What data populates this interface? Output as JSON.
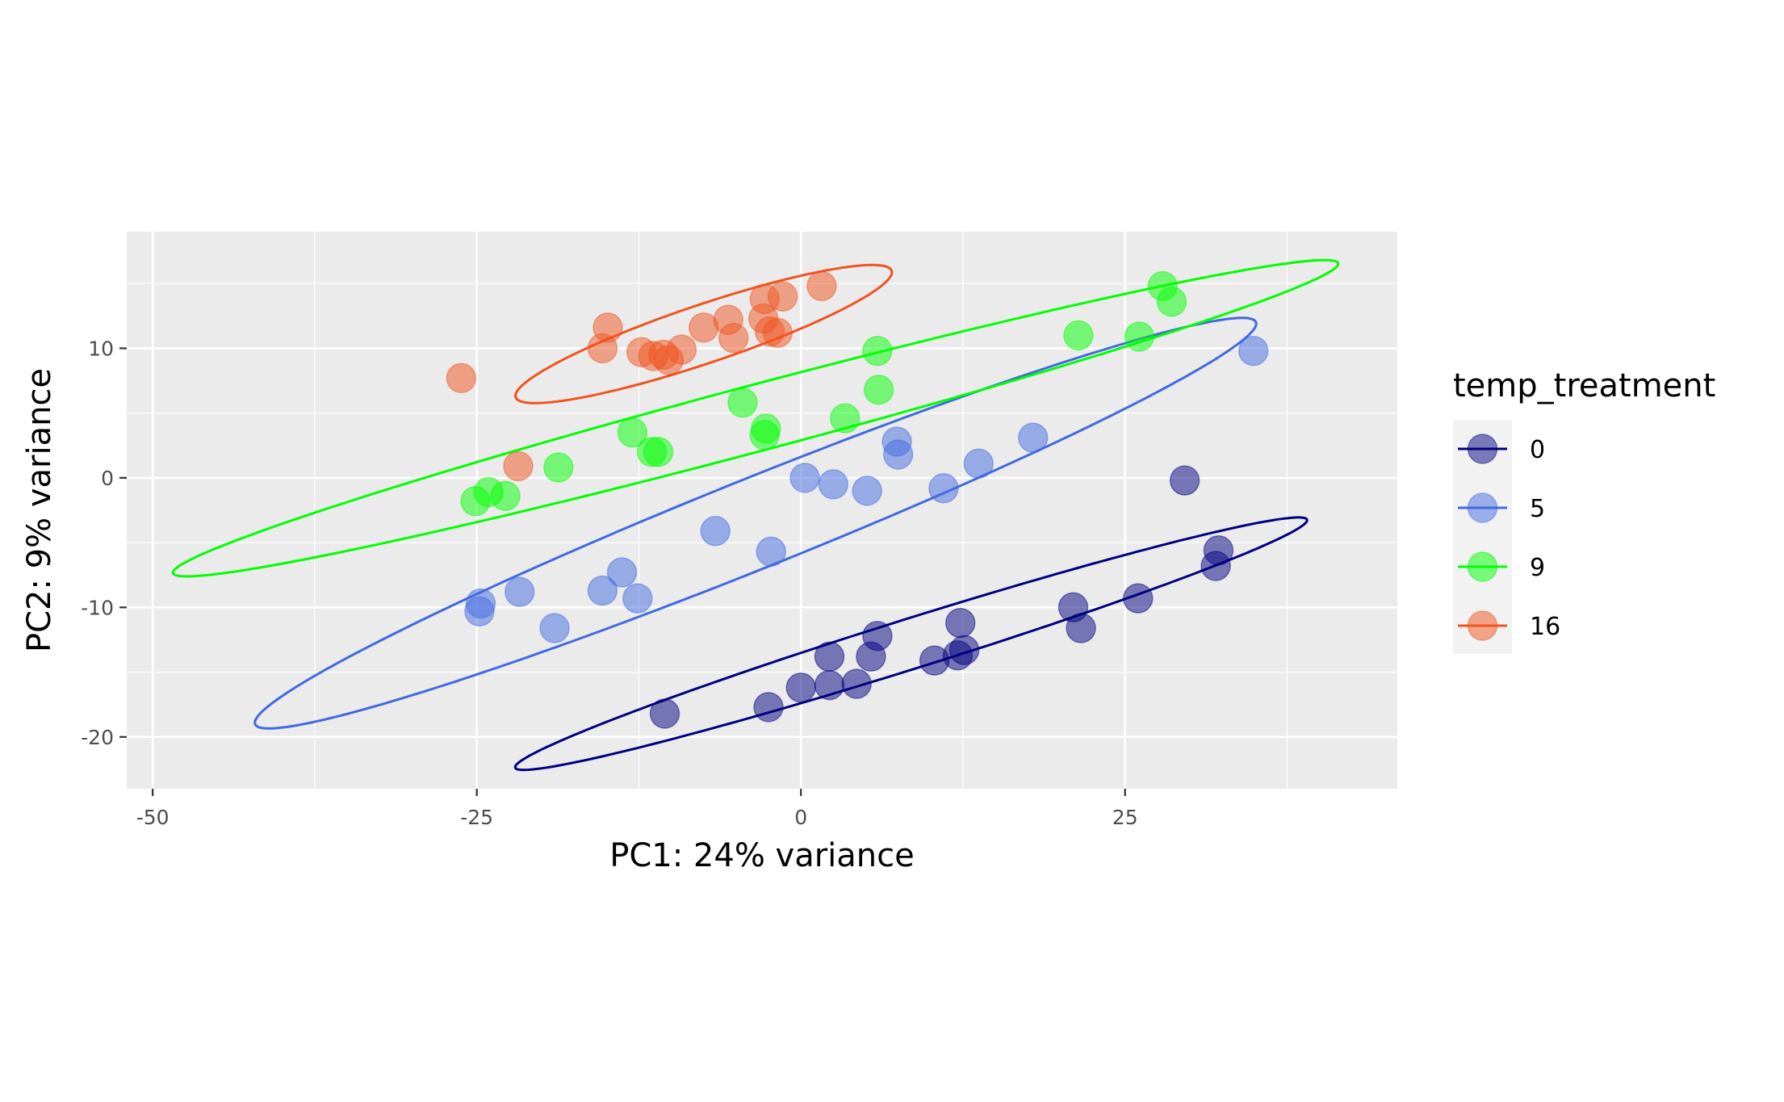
{
  "chart_data": {
    "type": "scatter",
    "xlabel": "PC1: 24% variance",
    "ylabel": "PC2: 9% variance",
    "xlim": [
      -52,
      46
    ],
    "ylim": [
      -24,
      19
    ],
    "x_ticks": [
      -50,
      -25,
      0,
      25
    ],
    "y_ticks": [
      -20,
      -10,
      0,
      10
    ],
    "x_tick_labels": [
      "-50",
      "-25",
      "0",
      "25"
    ],
    "y_tick_labels": [
      "-20",
      "-10",
      "0",
      "10"
    ],
    "grid": true,
    "legend": {
      "title": "temp_treatment",
      "position": "right"
    },
    "series": [
      {
        "name": "0",
        "color": "#00007f",
        "points": [
          [
            -10.5,
            -18.2
          ],
          [
            -2.5,
            -17.7
          ],
          [
            0,
            -16.2
          ],
          [
            2.2,
            -16
          ],
          [
            4.3,
            -15.9
          ],
          [
            2.2,
            -13.8
          ],
          [
            5.4,
            -13.8
          ],
          [
            5.9,
            -12.2
          ],
          [
            10.3,
            -14.1
          ],
          [
            12.1,
            -13.7
          ],
          [
            12.6,
            -13.3
          ],
          [
            12.3,
            -11.2
          ],
          [
            21,
            -10
          ],
          [
            21.6,
            -11.6
          ],
          [
            26,
            -9.3
          ],
          [
            32.2,
            -5.6
          ],
          [
            32,
            -6.8
          ],
          [
            29.6,
            -0.2
          ]
        ],
        "ellipse": {
          "center": [
            8.5,
            -12.8
          ],
          "semi_major": 32,
          "semi_minor": 1.93,
          "angle_deg": 17.4
        }
      },
      {
        "name": "5",
        "color": "#4169e1",
        "points": [
          [
            -24.7,
            -9.7
          ],
          [
            -24.8,
            -10.3
          ],
          [
            -21.7,
            -8.8
          ],
          [
            -19,
            -11.6
          ],
          [
            -15.3,
            -8.7
          ],
          [
            -13.8,
            -7.3
          ],
          [
            -12.6,
            -9.3
          ],
          [
            -6.6,
            -4.1
          ],
          [
            -2.3,
            -5.7
          ],
          [
            0.3,
            0
          ],
          [
            2.5,
            -0.5
          ],
          [
            5.1,
            -1
          ],
          [
            7.4,
            2.8
          ],
          [
            7.5,
            1.8
          ],
          [
            11,
            -0.8
          ],
          [
            13.7,
            1.1
          ],
          [
            17.9,
            3.1
          ],
          [
            34.9,
            9.8
          ]
        ],
        "ellipse": {
          "center": [
            -3.5,
            -3.5
          ],
          "semi_major": 41.6,
          "semi_minor": 3.47,
          "angle_deg": 21.9
        }
      },
      {
        "name": "9",
        "color": "#00ff00",
        "points": [
          [
            -25.1,
            -1.8
          ],
          [
            -24.1,
            -1.1
          ],
          [
            -22.8,
            -1.4
          ],
          [
            -18.7,
            0.8
          ],
          [
            -13,
            3.5
          ],
          [
            -11.5,
            2
          ],
          [
            -11,
            2
          ],
          [
            -4.5,
            5.8
          ],
          [
            -2.7,
            3.8
          ],
          [
            -2.8,
            3.3
          ],
          [
            3.4,
            4.6
          ],
          [
            5.9,
            9.8
          ],
          [
            6,
            6.8
          ],
          [
            21.4,
            11
          ],
          [
            26.1,
            10.9
          ],
          [
            27.9,
            14.8
          ],
          [
            28.6,
            13.6
          ]
        ],
        "ellipse": {
          "center": [
            -3.5,
            4.6
          ],
          "semi_major": 46.5,
          "semi_minor": 2.55,
          "angle_deg": 14.9
        }
      },
      {
        "name": "16",
        "color": "#f05320",
        "points": [
          [
            -26.2,
            7.7
          ],
          [
            -21.8,
            0.9
          ],
          [
            -14.9,
            11.6
          ],
          [
            -15.3,
            10
          ],
          [
            -12.3,
            9.7
          ],
          [
            -11.4,
            9.4
          ],
          [
            -10.2,
            9.1
          ],
          [
            -10.6,
            9.5
          ],
          [
            -9.2,
            9.9
          ],
          [
            -7.5,
            11.6
          ],
          [
            -5.6,
            12.2
          ],
          [
            -5.2,
            10.8
          ],
          [
            -2.8,
            13.8
          ],
          [
            -2.9,
            12.3
          ],
          [
            -2.4,
            11.3
          ],
          [
            -1.8,
            11.2
          ],
          [
            -1.4,
            14
          ],
          [
            1.6,
            14.8
          ]
        ],
        "ellipse": {
          "center": [
            -7.5,
            11.1
          ],
          "semi_major": 15.3,
          "semi_minor": 2.26,
          "angle_deg": 18.6
        }
      }
    ]
  }
}
